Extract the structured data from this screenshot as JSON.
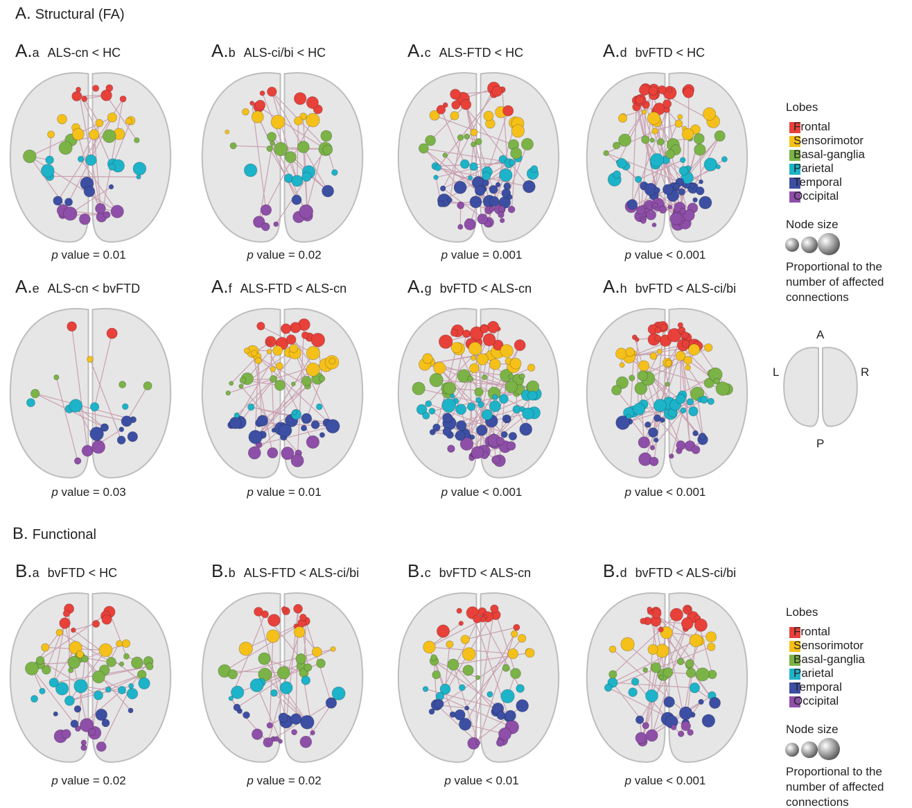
{
  "sections": [
    {
      "letter": "A.",
      "title": "Structural (FA)",
      "panels": [
        {
          "label": "A.",
          "sub": "a",
          "title": "ALS-cn < HC",
          "p": "p",
          "p_value": "value = 0.01"
        },
        {
          "label": "A.",
          "sub": "b",
          "title": "ALS-ci/bi < HC",
          "p": "p",
          "p_value": "value = 0.02"
        },
        {
          "label": "A.",
          "sub": "c",
          "title": "ALS-FTD < HC",
          "p": "p",
          "p_value": "value = 0.001"
        },
        {
          "label": "A.",
          "sub": "d",
          "title": "bvFTD < HC",
          "p": "p",
          "p_value": "value < 0.001"
        },
        {
          "label": "A.",
          "sub": "e",
          "title": "ALS-cn < bvFTD",
          "p": "p",
          "p_value": "value = 0.03"
        },
        {
          "label": "A.",
          "sub": "f",
          "title": "ALS-FTD < ALS-cn",
          "p": "p",
          "p_value": "value = 0.01"
        },
        {
          "label": "A.",
          "sub": "g",
          "title": "bvFTD < ALS-cn",
          "p": "p",
          "p_value": "value < 0.001"
        },
        {
          "label": "A.",
          "sub": "h",
          "title": "bvFTD < ALS-ci/bi",
          "p": "p",
          "p_value": "value < 0.001"
        }
      ],
      "legend": {
        "lobes_title": "Lobes",
        "lobes": [
          {
            "name": "Frontal",
            "color": "#e8413a"
          },
          {
            "name": "Sensorimotor",
            "color": "#f5c01a"
          },
          {
            "name": "Basal-ganglia",
            "color": "#7bb347"
          },
          {
            "name": "Parietal",
            "color": "#1db3c9"
          },
          {
            "name": "Temporal",
            "color": "#3c4fa3"
          },
          {
            "name": "Occipital",
            "color": "#8e4fa8"
          }
        ],
        "node_size_title": "Node size",
        "node_size_note": "Proportional to the number of affected connections"
      },
      "orientation": {
        "anterior": "A",
        "left": "L",
        "right": "R",
        "posterior": "P"
      }
    },
    {
      "letter": "B.",
      "title": "Functional",
      "panels": [
        {
          "label": "B.",
          "sub": "a",
          "title": "bvFTD < HC",
          "p": "p",
          "p_value": "value = 0.02"
        },
        {
          "label": "B.",
          "sub": "b",
          "title": "ALS-FTD < ALS-ci/bi",
          "p": "p",
          "p_value": "value = 0.02"
        },
        {
          "label": "B.",
          "sub": "c",
          "title": "bvFTD < ALS-cn",
          "p": "p",
          "p_value": "value < 0.01"
        },
        {
          "label": "B.",
          "sub": "d",
          "title": "bvFTD < ALS-ci/bi",
          "p": "p",
          "p_value": "value < 0.001"
        }
      ],
      "legend": {
        "lobes_title": "Lobes",
        "lobes": [
          {
            "name": "Frontal",
            "color": "#e8413a"
          },
          {
            "name": "Sensorimotor",
            "color": "#f5c01a"
          },
          {
            "name": "Basal-ganglia",
            "color": "#7bb347"
          },
          {
            "name": "Parietal",
            "color": "#1db3c9"
          },
          {
            "name": "Temporal",
            "color": "#3c4fa3"
          },
          {
            "name": "Occipital",
            "color": "#8e4fa8"
          }
        ],
        "node_size_title": "Node size",
        "node_size_note": "Proportional to the number of affected connections"
      }
    }
  ]
}
